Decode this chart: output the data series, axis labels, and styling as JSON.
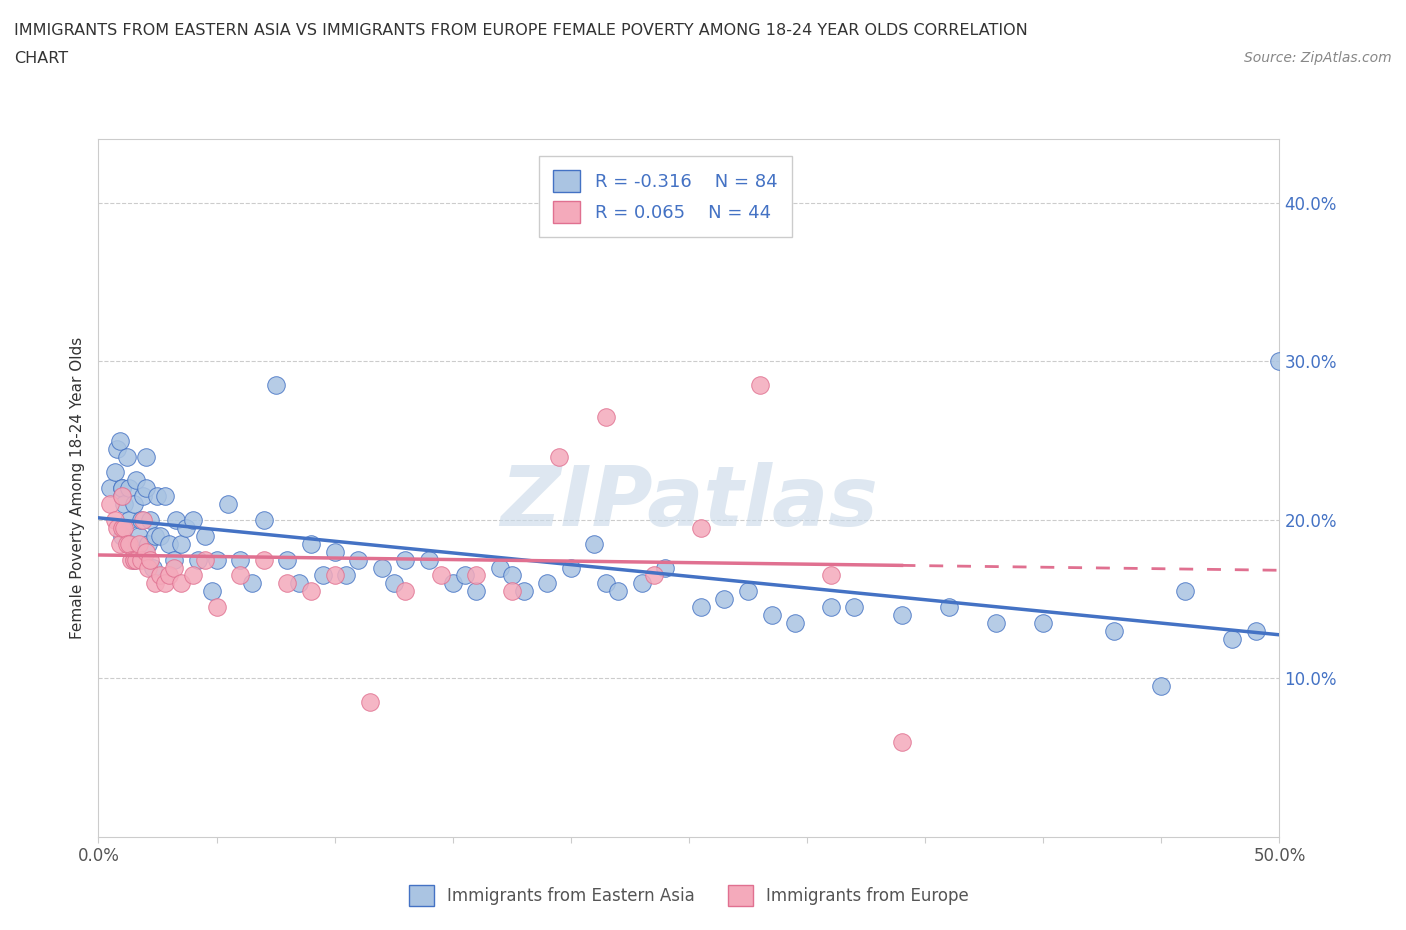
{
  "title_line1": "IMMIGRANTS FROM EASTERN ASIA VS IMMIGRANTS FROM EUROPE FEMALE POVERTY AMONG 18-24 YEAR OLDS CORRELATION",
  "title_line2": "CHART",
  "source": "Source: ZipAtlas.com",
  "ylabel": "Female Poverty Among 18-24 Year Olds",
  "xlim": [
    0.0,
    0.5
  ],
  "ylim": [
    0.0,
    0.44
  ],
  "color_eastern_asia": "#aac4e2",
  "color_europe": "#f4aabb",
  "line_color_eastern_asia": "#4472c4",
  "line_color_europe": "#e07090",
  "R_eastern_asia": -0.316,
  "N_eastern_asia": 84,
  "R_europe": 0.065,
  "N_europe": 44,
  "legend_label_eastern_asia": "Immigrants from Eastern Asia",
  "legend_label_europe": "Immigrants from Europe",
  "watermark": "ZIPatlas",
  "watermark_color": "#c8d8e8",
  "eastern_asia_x": [
    0.005,
    0.007,
    0.008,
    0.009,
    0.01,
    0.01,
    0.01,
    0.01,
    0.011,
    0.012,
    0.013,
    0.013,
    0.014,
    0.015,
    0.015,
    0.016,
    0.017,
    0.018,
    0.019,
    0.02,
    0.02,
    0.021,
    0.022,
    0.023,
    0.024,
    0.025,
    0.026,
    0.028,
    0.03,
    0.032,
    0.033,
    0.035,
    0.037,
    0.04,
    0.042,
    0.045,
    0.048,
    0.05,
    0.055,
    0.06,
    0.065,
    0.07,
    0.075,
    0.08,
    0.085,
    0.09,
    0.095,
    0.1,
    0.105,
    0.11,
    0.12,
    0.125,
    0.13,
    0.14,
    0.15,
    0.155,
    0.16,
    0.17,
    0.175,
    0.18,
    0.19,
    0.2,
    0.21,
    0.215,
    0.22,
    0.23,
    0.24,
    0.255,
    0.265,
    0.275,
    0.285,
    0.295,
    0.31,
    0.32,
    0.34,
    0.36,
    0.38,
    0.4,
    0.43,
    0.45,
    0.46,
    0.48,
    0.49,
    0.5
  ],
  "eastern_asia_y": [
    0.22,
    0.23,
    0.245,
    0.25,
    0.22,
    0.215,
    0.22,
    0.19,
    0.21,
    0.24,
    0.22,
    0.2,
    0.185,
    0.175,
    0.21,
    0.225,
    0.19,
    0.2,
    0.215,
    0.24,
    0.22,
    0.185,
    0.2,
    0.17,
    0.19,
    0.215,
    0.19,
    0.215,
    0.185,
    0.175,
    0.2,
    0.185,
    0.195,
    0.2,
    0.175,
    0.19,
    0.155,
    0.175,
    0.21,
    0.175,
    0.16,
    0.2,
    0.285,
    0.175,
    0.16,
    0.185,
    0.165,
    0.18,
    0.165,
    0.175,
    0.17,
    0.16,
    0.175,
    0.175,
    0.16,
    0.165,
    0.155,
    0.17,
    0.165,
    0.155,
    0.16,
    0.17,
    0.185,
    0.16,
    0.155,
    0.16,
    0.17,
    0.145,
    0.15,
    0.155,
    0.14,
    0.135,
    0.145,
    0.145,
    0.14,
    0.145,
    0.135,
    0.135,
    0.13,
    0.095,
    0.155,
    0.125,
    0.13,
    0.3
  ],
  "europe_x": [
    0.005,
    0.007,
    0.008,
    0.009,
    0.01,
    0.01,
    0.011,
    0.012,
    0.013,
    0.014,
    0.015,
    0.016,
    0.017,
    0.018,
    0.019,
    0.02,
    0.021,
    0.022,
    0.024,
    0.026,
    0.028,
    0.03,
    0.032,
    0.035,
    0.04,
    0.045,
    0.05,
    0.06,
    0.07,
    0.08,
    0.09,
    0.1,
    0.115,
    0.13,
    0.145,
    0.16,
    0.175,
    0.195,
    0.215,
    0.235,
    0.255,
    0.28,
    0.31,
    0.34
  ],
  "europe_y": [
    0.21,
    0.2,
    0.195,
    0.185,
    0.215,
    0.195,
    0.195,
    0.185,
    0.185,
    0.175,
    0.175,
    0.175,
    0.185,
    0.175,
    0.2,
    0.18,
    0.17,
    0.175,
    0.16,
    0.165,
    0.16,
    0.165,
    0.17,
    0.16,
    0.165,
    0.175,
    0.145,
    0.165,
    0.175,
    0.16,
    0.155,
    0.165,
    0.085,
    0.155,
    0.165,
    0.165,
    0.155,
    0.24,
    0.265,
    0.165,
    0.195,
    0.285,
    0.165,
    0.06
  ]
}
